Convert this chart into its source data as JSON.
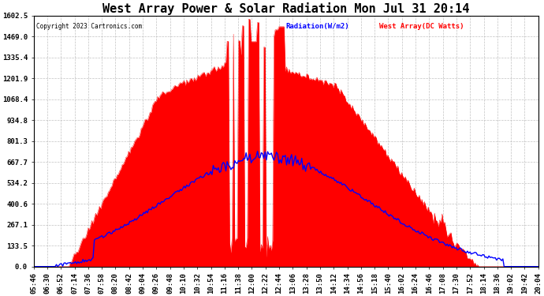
{
  "title": "West Array Power & Solar Radiation Mon Jul 31 20:14",
  "copyright": "Copyright 2023 Cartronics.com",
  "legend_radiation": "Radiation(W/m2)",
  "legend_west": "West Array(DC Watts)",
  "legend_radiation_color": "blue",
  "legend_west_color": "red",
  "ymax": 1602.5,
  "ymin": 0.0,
  "yticks": [
    0.0,
    133.5,
    267.1,
    400.6,
    534.2,
    667.7,
    801.3,
    934.8,
    1068.4,
    1201.9,
    1335.4,
    1469.0,
    1602.5
  ],
  "background_color": "#ffffff",
  "plot_bg_color": "#ffffff",
  "grid_color": "#bbbbbb",
  "fill_color": "red",
  "line_color": "blue",
  "title_fontsize": 11,
  "tick_fontsize": 6.5,
  "x_labels": [
    "05:46",
    "06:30",
    "06:52",
    "07:14",
    "07:36",
    "07:58",
    "08:20",
    "08:42",
    "09:04",
    "09:26",
    "09:48",
    "10:10",
    "10:32",
    "10:54",
    "11:16",
    "11:38",
    "12:00",
    "12:22",
    "12:44",
    "13:06",
    "13:28",
    "13:50",
    "14:12",
    "14:34",
    "14:56",
    "15:18",
    "15:40",
    "16:02",
    "16:24",
    "16:46",
    "17:08",
    "17:30",
    "17:52",
    "18:14",
    "18:36",
    "19:02",
    "19:42",
    "20:04"
  ]
}
